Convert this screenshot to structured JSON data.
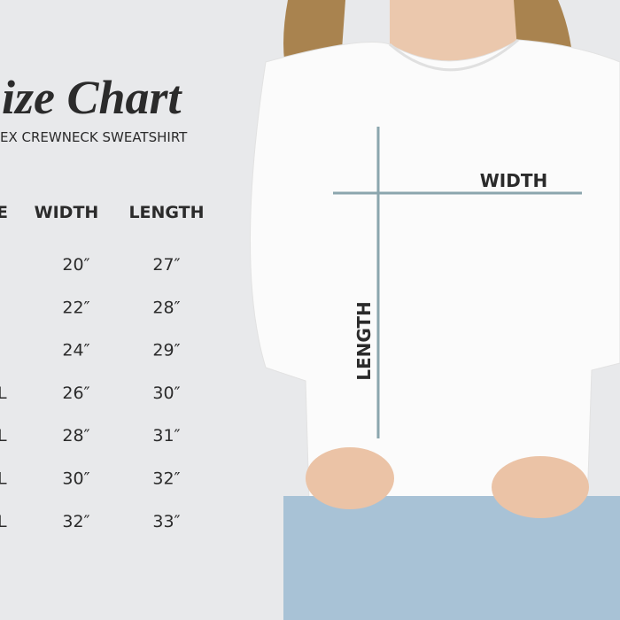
{
  "header": {
    "title": "ize Chart",
    "subtitle": "EX CREWNECK SWEATSHIRT"
  },
  "table": {
    "columns": [
      "E",
      "WIDTH",
      "LENGTH"
    ],
    "rows": [
      {
        "width": "20″",
        "length": "27″"
      },
      {
        "width": "22″",
        "length": "28″"
      },
      {
        "width": "24″",
        "length": "29″"
      },
      {
        "size": "L",
        "width": "26″",
        "length": "30″"
      },
      {
        "size": "L",
        "width": "28″",
        "length": "31″"
      },
      {
        "size": "L",
        "width": "30″",
        "length": "32″"
      },
      {
        "size": "L",
        "width": "32″",
        "length": "33″"
      }
    ]
  },
  "diagram": {
    "width_label": "WIDTH",
    "length_label": "LENGTH"
  }
}
